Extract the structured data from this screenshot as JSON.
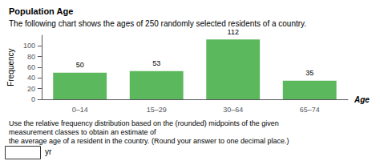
{
  "chart_data": {
    "type": "bar",
    "title": "Population Age",
    "subtitle": "The following chart shows the ages of 250 randomly selected residents of a country.",
    "xlabel": "Age",
    "ylabel": "Frequency",
    "categories": [
      "0–14",
      "15–29",
      "30–64",
      "65–74"
    ],
    "values": [
      50,
      53,
      112,
      35
    ],
    "color": "#5cb85c",
    "ylim": [
      0,
      120
    ],
    "yticks": [
      0,
      20,
      40,
      60,
      80,
      100
    ],
    "grid": false,
    "data_labels": true,
    "annotations": [
      "Use the relative frequency distribution based on the (rounded) midpoints of the given measurement classes to obtain an estimate of\nthe average age of a resident in the country. (Round your answer to one decimal place.)",
      "yr"
    ]
  }
}
